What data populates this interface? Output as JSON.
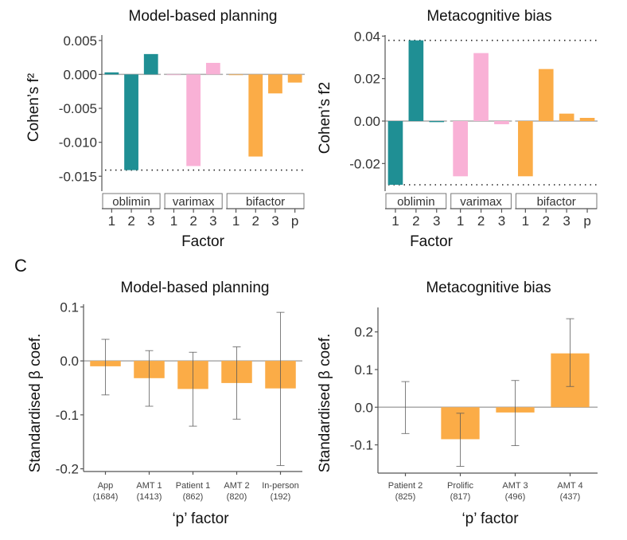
{
  "panel_letter": "C",
  "colors": {
    "oblimin": "#1f8f94",
    "varimax": "#f9b1d6",
    "bifactor": "#fbac47",
    "p_factor_bar": "#fbac47"
  },
  "chart_data": [
    {
      "id": "top-left",
      "type": "bar",
      "title": "Model-based planning",
      "xlabel": "Factor",
      "ylabel": "Cohen’s f²",
      "ylim": [
        -0.0172,
        0.0058
      ],
      "yticks": [
        0.005,
        0.0,
        -0.005,
        -0.01,
        -0.015
      ],
      "ytick_labels": [
        "0.005",
        "0.000",
        "-0.005",
        "-0.010",
        "-0.015"
      ],
      "reference_lines": [
        -0.0141
      ],
      "facets": [
        {
          "name": "oblimin",
          "categories": [
            "1",
            "2",
            "3"
          ],
          "values": [
            0.0003,
            -0.0141,
            0.003
          ]
        },
        {
          "name": "varimax",
          "categories": [
            "1",
            "2",
            "3"
          ],
          "values": [
            0.0,
            -0.0135,
            0.0017
          ]
        },
        {
          "name": "bifactor",
          "categories": [
            "1",
            "2",
            "3",
            "p"
          ],
          "values": [
            -0.0001,
            -0.0121,
            -0.0028,
            -0.0012
          ]
        }
      ]
    },
    {
      "id": "top-right",
      "type": "bar",
      "title": "Metacognitive bias",
      "xlabel": "Factor",
      "ylabel": "Cohen’s f2",
      "ylim": [
        -0.033,
        0.0405
      ],
      "yticks": [
        0.04,
        0.02,
        0.0,
        -0.02
      ],
      "ytick_labels": [
        "0.04",
        "0.02",
        "0.00",
        "-0.02"
      ],
      "reference_lines": [
        0.038,
        -0.03
      ],
      "facets": [
        {
          "name": "oblimin",
          "categories": [
            "1",
            "2",
            "3"
          ],
          "values": [
            -0.03,
            0.038,
            -0.0005
          ]
        },
        {
          "name": "varimax",
          "categories": [
            "1",
            "2",
            "3"
          ],
          "values": [
            -0.026,
            0.032,
            -0.0015
          ]
        },
        {
          "name": "bifactor",
          "categories": [
            "1",
            "2",
            "3",
            "p"
          ],
          "values": [
            -0.026,
            0.0245,
            0.0035,
            0.0015
          ]
        }
      ]
    },
    {
      "id": "bottom-left",
      "type": "bar",
      "title": "Model-based planning",
      "xlabel": "‘p’ factor",
      "ylabel": "Standardised β coef.",
      "ylim": [
        -0.205,
        0.105
      ],
      "yticks": [
        0.1,
        0.0,
        -0.1,
        -0.2
      ],
      "ytick_labels": [
        "0.1",
        "0.0",
        "-0.1",
        "-0.2"
      ],
      "categories": [
        {
          "name": "App",
          "n": "(1684)"
        },
        {
          "name": "AMT 1",
          "n": "(1413)"
        },
        {
          "name": "Patient 1",
          "n": "(862)"
        },
        {
          "name": "AMT 2",
          "n": "(820)"
        },
        {
          "name": "In-person",
          "n": "(192)"
        }
      ],
      "values": [
        -0.01,
        -0.032,
        -0.052,
        -0.041,
        -0.051
      ],
      "error_low": [
        -0.063,
        -0.084,
        -0.121,
        -0.108,
        -0.194
      ],
      "error_high": [
        0.04,
        0.019,
        0.016,
        0.026,
        0.09
      ]
    },
    {
      "id": "bottom-right",
      "type": "bar",
      "title": "Metacognitive bias",
      "xlabel": "‘p’ factor",
      "ylabel": "Standardised β coef.",
      "ylim": [
        -0.175,
        0.265
      ],
      "yticks": [
        0.2,
        0.1,
        0.0,
        -0.1
      ],
      "ytick_labels": [
        "0.2",
        "0.1",
        "0.0",
        "-0.1"
      ],
      "categories": [
        {
          "name": "Patient 2",
          "n": "(825)"
        },
        {
          "name": "Prolific",
          "n": "(817)"
        },
        {
          "name": "AMT 3",
          "n": "(496)"
        },
        {
          "name": "AMT 4",
          "n": "(437)"
        }
      ],
      "values": [
        0.0,
        -0.085,
        -0.014,
        0.143
      ],
      "error_low": [
        -0.07,
        -0.157,
        -0.102,
        0.055
      ],
      "error_high": [
        0.068,
        -0.016,
        0.071,
        0.235
      ]
    }
  ]
}
